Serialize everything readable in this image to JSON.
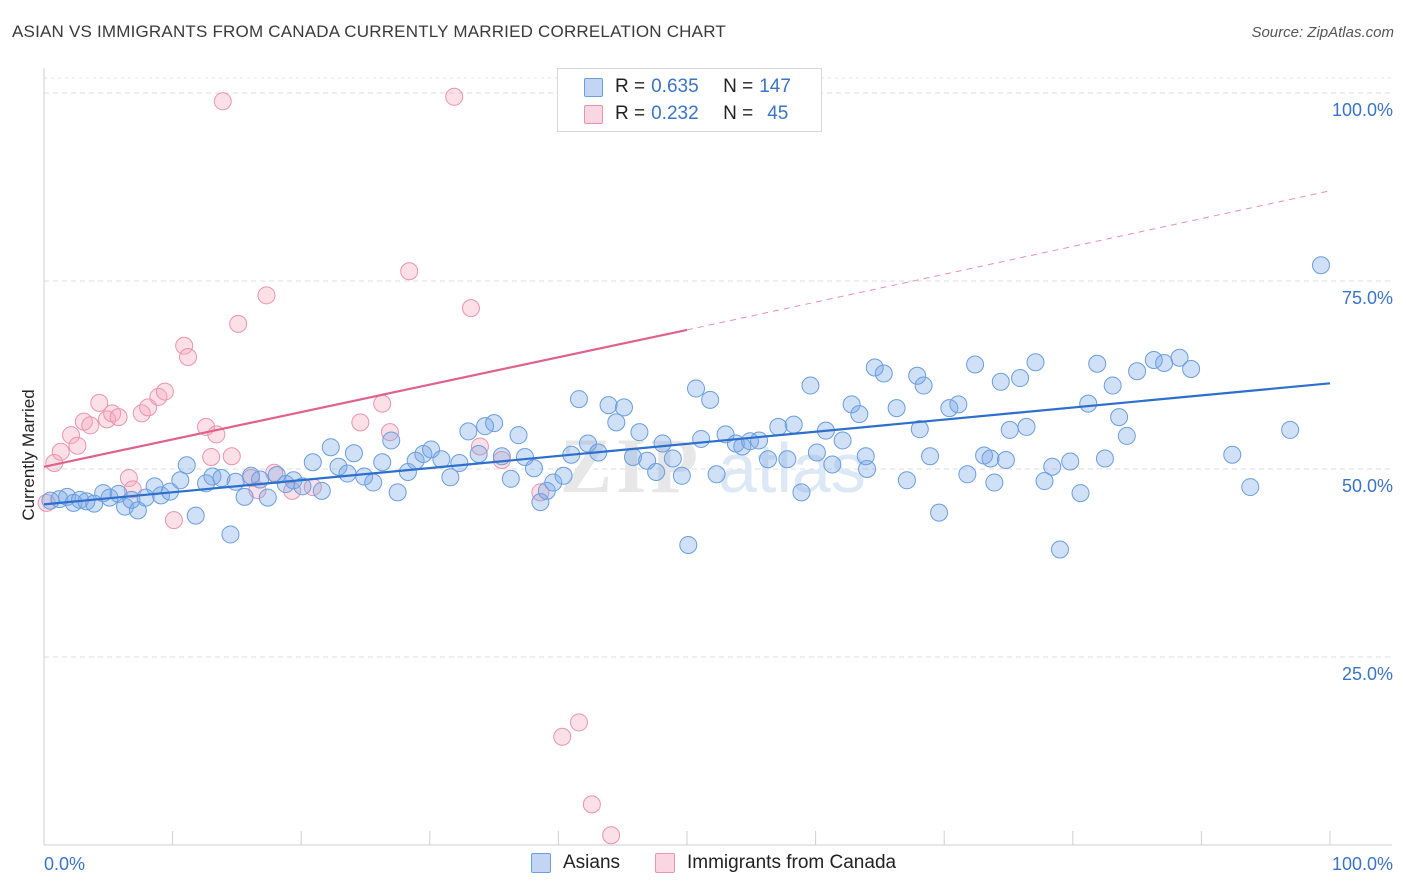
{
  "title": "ASIAN VS IMMIGRANTS FROM CANADA CURRENTLY MARRIED CORRELATION CHART",
  "source": "Source: ZipAtlas.com",
  "legend_top": {
    "rows": [
      {
        "r_label": "R =",
        "r_value": "0.635",
        "n_label": "N =",
        "n_value": "147",
        "color": "#7aaae8"
      },
      {
        "r_label": "R =",
        "r_value": "0.232",
        "n_label": "N =",
        "n_value": "45",
        "color": "#f0a0b8"
      }
    ]
  },
  "legend_bottom": [
    {
      "label": "Asians",
      "color": "#7aaae8"
    },
    {
      "label": "Immigrants from Canada",
      "color": "#f0a0b8"
    }
  ],
  "colors": {
    "blue_fill": "rgba(120,165,230,0.35)",
    "blue_stroke": "#6a9ee0",
    "blue_line": "#2c6fcc",
    "pink_fill": "rgba(245,165,190,0.35)",
    "pink_stroke": "#ec93b0",
    "pink_line": "#e0628c",
    "tick_text": "#3a74c8"
  },
  "chart_data": {
    "type": "scatter",
    "title": "ASIAN VS IMMIGRANTS FROM CANADA CURRENTLY MARRIED CORRELATION CHART",
    "xlabel": "",
    "ylabel": "Currently Married",
    "xlim": [
      0,
      100
    ],
    "ylim": [
      0,
      102
    ],
    "x_tick_labels": [
      "0.0%",
      "100.0%"
    ],
    "y_ticks": [
      25,
      50,
      75,
      100
    ],
    "y_tick_labels": [
      "25.0%",
      "50.0%",
      "75.0%",
      "100.0%"
    ],
    "grid": true,
    "watermark": "ZIPatlas",
    "series": [
      {
        "name": "Asians",
        "r": 0.635,
        "n": 147,
        "trend": {
          "x0": 0,
          "y0": 45.3,
          "x1": 100,
          "y1": 61.4
        },
        "points": [
          [
            0.5,
            45.8
          ],
          [
            1.2,
            46.0
          ],
          [
            1.8,
            46.3
          ],
          [
            2.3,
            45.5
          ],
          [
            2.8,
            45.9
          ],
          [
            3.3,
            45.7
          ],
          [
            3.9,
            45.4
          ],
          [
            4.6,
            46.8
          ],
          [
            5.1,
            46.2
          ],
          [
            5.8,
            46.7
          ],
          [
            6.3,
            45.0
          ],
          [
            6.8,
            45.9
          ],
          [
            7.3,
            44.5
          ],
          [
            7.9,
            46.2
          ],
          [
            8.6,
            47.7
          ],
          [
            9.1,
            46.5
          ],
          [
            9.8,
            47.0
          ],
          [
            10.6,
            48.5
          ],
          [
            11.1,
            50.5
          ],
          [
            11.8,
            43.8
          ],
          [
            12.6,
            48.1
          ],
          [
            13.1,
            49.0
          ],
          [
            13.8,
            48.8
          ],
          [
            14.5,
            41.3
          ],
          [
            14.9,
            48.3
          ],
          [
            15.6,
            46.3
          ],
          [
            16.1,
            49.1
          ],
          [
            16.8,
            48.6
          ],
          [
            17.4,
            46.2
          ],
          [
            18.1,
            49.2
          ],
          [
            18.8,
            48.0
          ],
          [
            19.4,
            48.5
          ],
          [
            20.1,
            47.7
          ],
          [
            20.9,
            50.9
          ],
          [
            21.6,
            47.1
          ],
          [
            22.3,
            52.9
          ],
          [
            22.9,
            50.3
          ],
          [
            23.6,
            49.4
          ],
          [
            24.1,
            52.1
          ],
          [
            24.9,
            49.0
          ],
          [
            25.6,
            48.2
          ],
          [
            26.3,
            50.9
          ],
          [
            27.0,
            53.8
          ],
          [
            27.5,
            46.9
          ],
          [
            28.3,
            49.6
          ],
          [
            28.9,
            51.1
          ],
          [
            29.5,
            52.0
          ],
          [
            30.1,
            52.6
          ],
          [
            30.9,
            51.3
          ],
          [
            31.6,
            48.9
          ],
          [
            32.3,
            50.8
          ],
          [
            33.0,
            55.0
          ],
          [
            33.8,
            52.0
          ],
          [
            34.3,
            55.7
          ],
          [
            35.0,
            56.1
          ],
          [
            35.6,
            51.7
          ],
          [
            36.3,
            48.7
          ],
          [
            36.9,
            54.5
          ],
          [
            37.4,
            51.6
          ],
          [
            38.1,
            50.1
          ],
          [
            38.6,
            45.6
          ],
          [
            39.1,
            47.1
          ],
          [
            39.6,
            48.2
          ],
          [
            40.4,
            49.1
          ],
          [
            41.0,
            51.9
          ],
          [
            41.6,
            59.3
          ],
          [
            42.3,
            53.4
          ],
          [
            43.1,
            52.2
          ],
          [
            43.9,
            58.5
          ],
          [
            44.5,
            56.2
          ],
          [
            45.1,
            58.2
          ],
          [
            45.8,
            51.6
          ],
          [
            46.3,
            54.9
          ],
          [
            46.9,
            51.1
          ],
          [
            47.6,
            49.6
          ],
          [
            48.1,
            53.4
          ],
          [
            48.9,
            51.4
          ],
          [
            49.6,
            49.1
          ],
          [
            50.1,
            39.9
          ],
          [
            50.7,
            60.7
          ],
          [
            51.1,
            54.0
          ],
          [
            51.8,
            59.2
          ],
          [
            52.3,
            49.3
          ],
          [
            53.0,
            54.6
          ],
          [
            53.8,
            53.4
          ],
          [
            54.3,
            53.0
          ],
          [
            54.9,
            53.7
          ],
          [
            55.6,
            53.8
          ],
          [
            56.3,
            51.3
          ],
          [
            57.1,
            55.6
          ],
          [
            57.8,
            51.3
          ],
          [
            58.3,
            55.9
          ],
          [
            58.9,
            46.9
          ],
          [
            59.6,
            61.1
          ],
          [
            60.1,
            52.2
          ],
          [
            60.8,
            55.1
          ],
          [
            61.3,
            50.6
          ],
          [
            62.1,
            53.8
          ],
          [
            62.8,
            58.6
          ],
          [
            63.4,
            57.3
          ],
          [
            64.0,
            50.0
          ],
          [
            64.6,
            63.5
          ],
          [
            65.3,
            62.7
          ],
          [
            66.3,
            58.1
          ],
          [
            67.1,
            48.5
          ],
          [
            67.9,
            62.4
          ],
          [
            68.4,
            61.1
          ],
          [
            68.9,
            51.7
          ],
          [
            69.6,
            44.2
          ],
          [
            70.4,
            58.1
          ],
          [
            71.1,
            58.6
          ],
          [
            71.8,
            49.3
          ],
          [
            72.4,
            63.9
          ],
          [
            73.1,
            51.8
          ],
          [
            73.9,
            48.2
          ],
          [
            74.4,
            61.6
          ],
          [
            75.1,
            55.2
          ],
          [
            75.9,
            62.1
          ],
          [
            76.4,
            55.6
          ],
          [
            77.1,
            64.2
          ],
          [
            77.8,
            48.4
          ],
          [
            78.4,
            50.3
          ],
          [
            79.0,
            39.3
          ],
          [
            79.8,
            51.0
          ],
          [
            80.6,
            46.8
          ],
          [
            81.2,
            58.7
          ],
          [
            81.9,
            64.0
          ],
          [
            82.5,
            51.4
          ],
          [
            83.1,
            61.1
          ],
          [
            83.6,
            56.9
          ],
          [
            84.2,
            54.4
          ],
          [
            85.0,
            63.0
          ],
          [
            86.3,
            64.5
          ],
          [
            87.1,
            64.1
          ],
          [
            88.3,
            64.8
          ],
          [
            89.2,
            63.3
          ],
          [
            92.4,
            51.9
          ],
          [
            93.8,
            47.6
          ],
          [
            96.9,
            55.2
          ],
          [
            99.3,
            77.1
          ],
          [
            73.6,
            51.4
          ],
          [
            74.8,
            51.2
          ],
          [
            68.1,
            55.3
          ],
          [
            63.9,
            51.7
          ]
        ]
      },
      {
        "name": "Immigrants from Canada",
        "r": 0.232,
        "n": 45,
        "trend": {
          "x0": 0,
          "y0": 50.3,
          "x1": 50,
          "y1": 68.5,
          "dashed_x1": 100,
          "dashed_y1": 87.0
        },
        "points": [
          [
            0.2,
            45.5
          ],
          [
            0.8,
            50.8
          ],
          [
            1.3,
            52.3
          ],
          [
            2.1,
            54.5
          ],
          [
            2.6,
            53.1
          ],
          [
            3.1,
            56.3
          ],
          [
            3.6,
            55.8
          ],
          [
            4.3,
            58.8
          ],
          [
            4.9,
            56.6
          ],
          [
            5.3,
            57.4
          ],
          [
            5.8,
            56.9
          ],
          [
            6.6,
            48.8
          ],
          [
            6.9,
            47.3
          ],
          [
            7.6,
            57.4
          ],
          [
            8.1,
            58.2
          ],
          [
            8.9,
            59.6
          ],
          [
            9.4,
            60.3
          ],
          [
            10.1,
            43.2
          ],
          [
            10.9,
            66.4
          ],
          [
            11.2,
            64.9
          ],
          [
            12.6,
            55.6
          ],
          [
            13.0,
            51.6
          ],
          [
            13.4,
            54.6
          ],
          [
            13.9,
            98.9
          ],
          [
            14.6,
            51.7
          ],
          [
            15.1,
            69.3
          ],
          [
            16.1,
            48.8
          ],
          [
            16.6,
            47.2
          ],
          [
            17.3,
            73.1
          ],
          [
            17.9,
            49.5
          ],
          [
            19.3,
            47.1
          ],
          [
            20.9,
            47.6
          ],
          [
            24.6,
            56.2
          ],
          [
            26.3,
            58.7
          ],
          [
            26.9,
            54.9
          ],
          [
            28.4,
            76.3
          ],
          [
            31.9,
            99.5
          ],
          [
            33.2,
            71.4
          ],
          [
            33.9,
            53.0
          ],
          [
            35.6,
            51.2
          ],
          [
            38.6,
            46.9
          ],
          [
            40.3,
            14.4
          ],
          [
            41.6,
            16.3
          ],
          [
            42.6,
            5.4
          ],
          [
            44.1,
            1.3
          ]
        ]
      }
    ]
  }
}
